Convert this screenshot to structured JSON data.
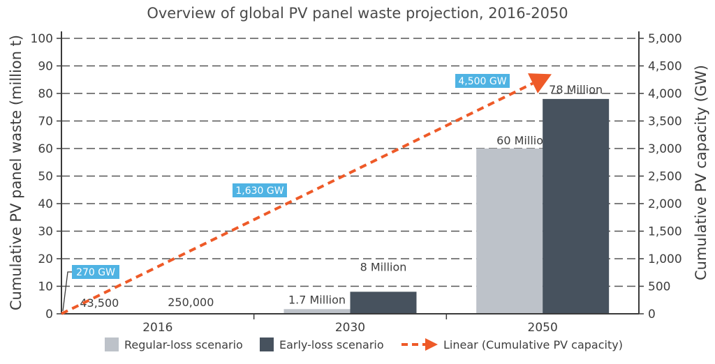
{
  "chart_data": {
    "type": "bar",
    "title": "Overview of global PV panel waste projection, 2016-2050",
    "categories": [
      "2016",
      "2030",
      "2050"
    ],
    "series": [
      {
        "name": "Regular-loss scenario",
        "color": "#bdc2c9",
        "values": [
          0.0435,
          1.7,
          60
        ],
        "labels": [
          "43,500",
          "1.7 Million",
          "60 Million"
        ]
      },
      {
        "name": "Early-loss scenario",
        "color": "#47525e",
        "values": [
          0.25,
          8,
          78
        ],
        "labels": [
          "250,000",
          "8 Million",
          "78 Million"
        ]
      }
    ],
    "line_series": {
      "name": "Linear (Cumulative PV capacity)",
      "color": "#ee5a28",
      "axis": "right",
      "start_value": 0,
      "end_value": 4350,
      "annotations": [
        {
          "label": "270 GW",
          "value": 270
        },
        {
          "label": "1,630 GW",
          "value": 1630
        },
        {
          "label": "4,500 GW",
          "value": 4500
        }
      ],
      "annotation_color": "#4fb3e3"
    },
    "ylabel": "Cumulative PV panel waste (million t)",
    "y2label": "Cumulative PV capacity (GW)",
    "ylim": [
      0,
      100
    ],
    "y2lim": [
      0,
      5000
    ],
    "yticks": [
      "0",
      "10",
      "20",
      "30",
      "40",
      "50",
      "60",
      "70",
      "80",
      "90",
      "100"
    ],
    "y2ticks": [
      "0",
      "500",
      "1,000",
      "1,500",
      "2,000",
      "2,500",
      "3,000",
      "3,500",
      "4,000",
      "4,500",
      "5,000"
    ],
    "grid": true,
    "legend_position": "bottom",
    "legend": [
      {
        "label": "Regular-loss scenario",
        "kind": "box",
        "color": "#bdc2c9"
      },
      {
        "label": "Early-loss scenario",
        "kind": "box",
        "color": "#47525e"
      },
      {
        "label": "Linear (Cumulative PV capacity)",
        "kind": "arrow",
        "color": "#ee5a28"
      }
    ]
  }
}
